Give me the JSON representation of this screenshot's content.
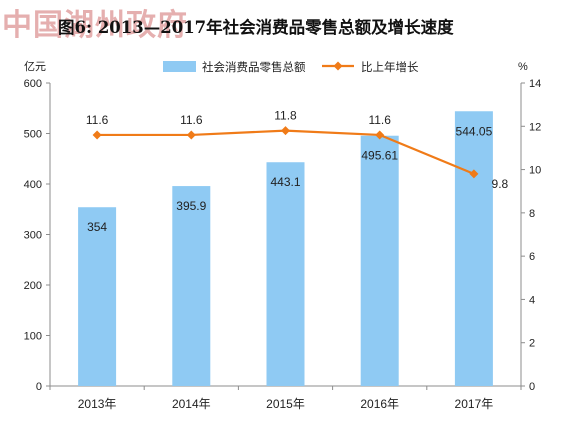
{
  "watermark": "中国湖州政府",
  "title": "图6: 2013—2017年社会消费品零售总额及增长速度",
  "chart_data": {
    "type": "bar",
    "title": "图6: 2013—2017年社会消费品零售总额及增长速度",
    "categories": [
      "2013年",
      "2014年",
      "2015年",
      "2016年",
      "2017年"
    ],
    "series": [
      {
        "name": "社会消费品零售总额",
        "type": "bar",
        "axis": "left",
        "color": "#8fcaf3",
        "values": [
          354,
          395.9,
          443.1,
          495.61,
          544.05
        ],
        "labels": [
          "354",
          "395.9",
          "443.1",
          "495.61",
          "544.05"
        ]
      },
      {
        "name": "比上年增长",
        "type": "line",
        "axis": "right",
        "color": "#f07b18",
        "values": [
          11.6,
          11.6,
          11.8,
          11.6,
          9.8
        ],
        "labels": [
          "11.6",
          "11.6",
          "11.8",
          "11.6",
          "9.8"
        ]
      }
    ],
    "y_left": {
      "unit": "亿元",
      "min": 0,
      "max": 600,
      "step": 100
    },
    "y_right": {
      "unit": "%",
      "min": 0,
      "max": 14,
      "step": 2
    },
    "legend_position": "top-center",
    "grid": false
  }
}
